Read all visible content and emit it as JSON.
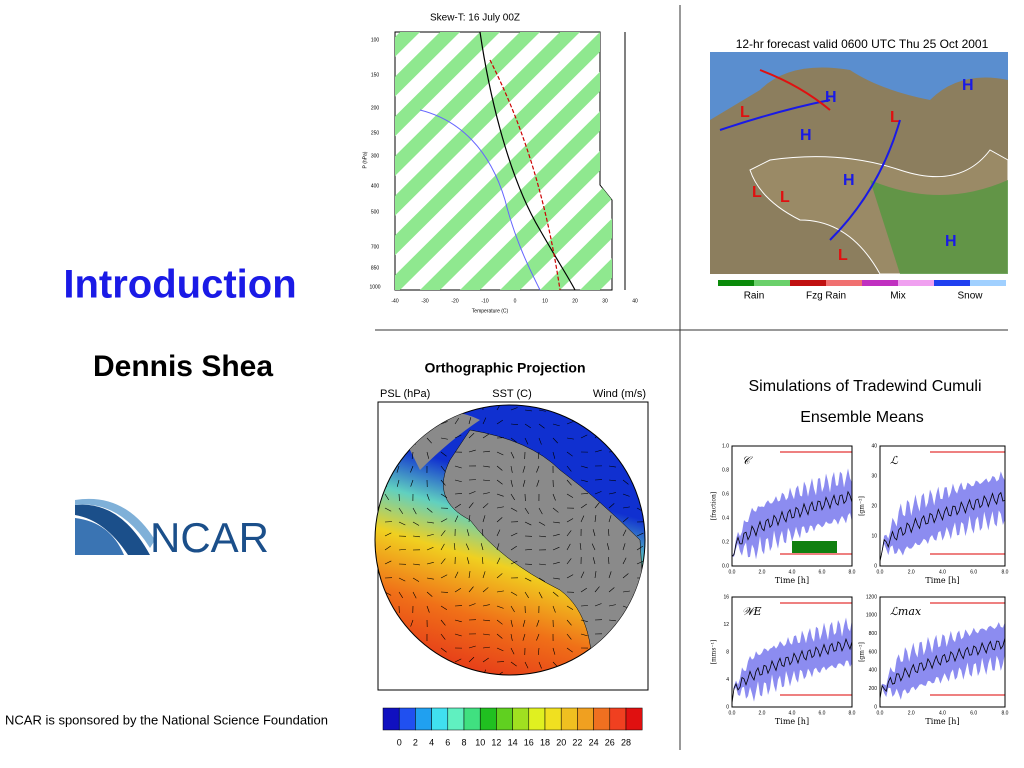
{
  "left": {
    "title": "Introduction",
    "author": "Dennis Shea",
    "logo": "NCAR",
    "sponsor": "NCAR is sponsored by the National Science Foundation"
  },
  "skewt": {
    "title": "Skew-T: 16 July 00Z",
    "pressure_labels": [
      "100",
      "150",
      "200",
      "250",
      "300",
      "400",
      "500",
      "700",
      "850",
      "1000"
    ],
    "temp_labels": [
      "-40",
      "-30",
      "-20",
      "-10",
      "0",
      "10",
      "20",
      "30",
      "40"
    ],
    "y_label": "P (hPa)",
    "x_label": "Temperature (C)"
  },
  "forecast": {
    "title": "12-hr forecast valid 0600 UTC Thu 25 Oct 2001",
    "legend": [
      "Rain",
      "Fzg Rain",
      "Mix",
      "Snow"
    ]
  },
  "ortho": {
    "title": "Orthographic Projection",
    "labels": [
      "PSL (hPa)",
      "SST (C)",
      "Wind (m/s)"
    ],
    "colorbar_labels": [
      "0",
      "2",
      "4",
      "6",
      "8",
      "10",
      "12",
      "14",
      "16",
      "18",
      "20",
      "22",
      "24",
      "26",
      "28"
    ]
  },
  "cumuli": {
    "title": "Simulations of Tradewind Cumuli",
    "subtitle": "Ensemble Means",
    "x_label": "Time [h]",
    "x_ticks": [
      "0.0",
      "2.0",
      "4.0",
      "6.0",
      "8.0"
    ],
    "panels": [
      {
        "name": "𝒞",
        "y_label": "[fraction]",
        "y_ticks": [
          "0.0",
          "0.2",
          "0.4",
          "0.6",
          "0.8",
          "1.0"
        ]
      },
      {
        "name": "ℒ",
        "y_label": "[gm⁻²]",
        "y_ticks": [
          "0",
          "10",
          "20",
          "30",
          "40"
        ]
      },
      {
        "name": "𝒲E",
        "y_label": "[mms⁻¹]",
        "y_ticks": [
          "0",
          "4",
          "8",
          "12",
          "16"
        ]
      },
      {
        "name": "ℒmax",
        "y_label": "[gm⁻²]",
        "y_ticks": [
          "0",
          "200",
          "400",
          "600",
          "800",
          "1000",
          "1200"
        ]
      }
    ]
  }
}
